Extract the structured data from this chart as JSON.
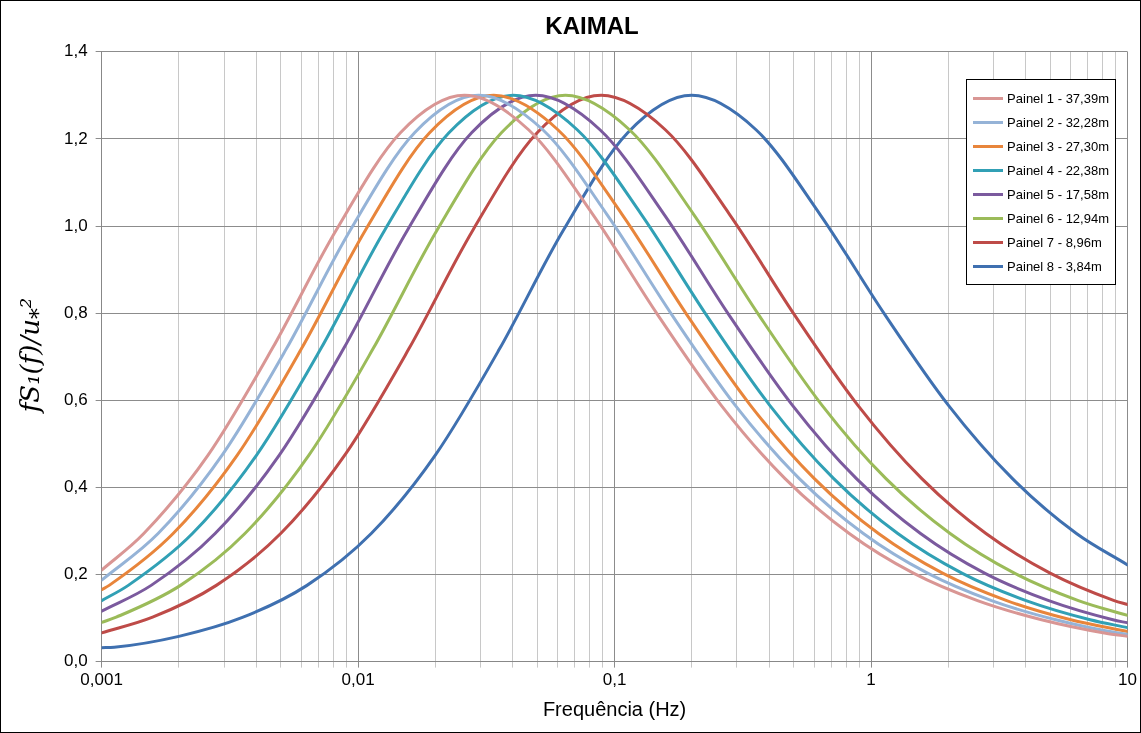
{
  "chart_data": {
    "type": "line",
    "title": "KAIMAL",
    "xlabel": "Frequência (Hz)",
    "ylabel": "fS₁(f)/u$_{*}$²",
    "log": "x",
    "grid": true,
    "legend": "top right",
    "marker": "none",
    "line_style": "solid",
    "xlim": [
      0.001,
      10
    ],
    "xticks": [
      {
        "value": 0.001,
        "label": "0,001"
      },
      {
        "value": 0.002,
        "label": null
      },
      {
        "value": 0.003,
        "label": null
      },
      {
        "value": 0.004,
        "label": null
      },
      {
        "value": 0.005,
        "label": null
      },
      {
        "value": 0.006,
        "label": null
      },
      {
        "value": 0.007,
        "label": null
      },
      {
        "value": 0.008,
        "label": null
      },
      {
        "value": 0.009,
        "label": null
      },
      {
        "value": 0.01,
        "label": "0,01"
      },
      {
        "value": 0.02,
        "label": null
      },
      {
        "value": 0.03,
        "label": null
      },
      {
        "value": 0.04,
        "label": null
      },
      {
        "value": 0.05,
        "label": null
      },
      {
        "value": 0.06,
        "label": null
      },
      {
        "value": 0.07,
        "label": null
      },
      {
        "value": 0.08,
        "label": null
      },
      {
        "value": 0.09,
        "label": null
      },
      {
        "value": 0.1,
        "label": "0,1"
      },
      {
        "value": 0.2,
        "label": null
      },
      {
        "value": 0.3,
        "label": null
      },
      {
        "value": 0.4,
        "label": null
      },
      {
        "value": 0.5,
        "label": null
      },
      {
        "value": 0.6,
        "label": null
      },
      {
        "value": 0.7,
        "label": null
      },
      {
        "value": 0.8,
        "label": null
      },
      {
        "value": 0.9,
        "label": null
      },
      1,
      {
        "value": 2,
        "label": null
      },
      {
        "value": 3,
        "label": null
      },
      {
        "value": 4,
        "label": null
      },
      {
        "value": 5,
        "label": null
      },
      {
        "value": 6,
        "label": null
      },
      {
        "value": 7,
        "label": null
      },
      {
        "value": 8,
        "label": null
      },
      {
        "value": 9,
        "label": null
      },
      10
    ],
    "ylim": [
      0,
      1.4
    ],
    "yticks": [
      {
        "value": 0,
        "label": "0,0"
      },
      {
        "value": 0.2,
        "label": "0,2"
      },
      {
        "value": 0.4,
        "label": "0,4"
      },
      {
        "value": 0.6,
        "label": "0,6"
      },
      {
        "value": 0.8,
        "label": "0,8"
      },
      {
        "value": 1,
        "label": "1,0"
      },
      {
        "value": 1.2,
        "label": "1,2"
      },
      {
        "value": 1.4,
        "label": "1,4"
      }
    ],
    "series": [
      {
        "name": "Painel 1 - 37,39m",
        "color": "#d99694",
        "x": [
          0.001,
          0.00146,
          0.0026,
          0.00462,
          0.00822,
          0.01462,
          0.026,
          0.0462,
          0.0822,
          0.1462,
          0.26,
          0.462,
          0.822,
          1.462,
          2.6,
          4.62,
          8.22,
          10
        ],
        "values": [
          0.21,
          0.294,
          0.474,
          0.718,
          0.991,
          1.214,
          1.3,
          1.221,
          1.027,
          0.799,
          0.589,
          0.42,
          0.294,
          0.203,
          0.14,
          0.096,
          0.065,
          0.058
        ]
      },
      {
        "name": "Painel 2 - 32,28m",
        "color": "#95b3d7",
        "x": [
          0.001,
          0.00166,
          0.00295,
          0.00525,
          0.00933,
          0.0166,
          0.0295,
          0.0525,
          0.0933,
          0.166,
          0.295,
          0.525,
          0.933,
          1.66,
          2.95,
          5.25,
          9.33,
          10
        ],
        "values": [
          0.187,
          0.294,
          0.474,
          0.718,
          0.991,
          1.214,
          1.3,
          1.221,
          1.027,
          0.799,
          0.589,
          0.42,
          0.294,
          0.203,
          0.14,
          0.096,
          0.065,
          0.063
        ]
      },
      {
        "name": "Painel 3 - 27,30m",
        "color": "#e8853b",
        "x": [
          0.001,
          0.00107,
          0.0019,
          0.00338,
          0.00601,
          0.01069,
          0.019,
          0.0338,
          0.0601,
          0.1069,
          0.19,
          0.338,
          0.601,
          1.069,
          1.9,
          3.38,
          6.01,
          10
        ],
        "values": [
          0.165,
          0.175,
          0.294,
          0.474,
          0.718,
          0.991,
          1.214,
          1.3,
          1.221,
          1.027,
          0.799,
          0.589,
          0.42,
          0.294,
          0.203,
          0.14,
          0.096,
          0.069
        ]
      },
      {
        "name": "Painel 4 - 22,38m",
        "color": "#31a0b5",
        "x": [
          0.001,
          0.00127,
          0.00226,
          0.00402,
          0.00715,
          0.01271,
          0.0226,
          0.0402,
          0.0715,
          0.1271,
          0.226,
          0.402,
          0.715,
          1.271,
          2.26,
          4.02,
          7.15,
          10
        ],
        "values": [
          0.14,
          0.175,
          0.294,
          0.474,
          0.718,
          0.991,
          1.214,
          1.3,
          1.221,
          1.027,
          0.799,
          0.589,
          0.42,
          0.294,
          0.203,
          0.14,
          0.096,
          0.078
        ]
      },
      {
        "name": "Painel 5 - 17,58m",
        "color": "#7b5a9e",
        "x": [
          0.001,
          0.00156,
          0.00277,
          0.00493,
          0.00877,
          0.01559,
          0.0277,
          0.0493,
          0.0877,
          0.1559,
          0.277,
          0.493,
          0.877,
          1.559,
          2.77,
          4.93,
          8.77,
          10
        ],
        "values": [
          0.116,
          0.175,
          0.294,
          0.474,
          0.718,
          0.991,
          1.214,
          1.3,
          1.221,
          1.027,
          0.799,
          0.589,
          0.42,
          0.294,
          0.203,
          0.14,
          0.096,
          0.089
        ]
      },
      {
        "name": "Painel 6 - 12,94m",
        "color": "#9bbb59",
        "x": [
          0.001,
          0.00114,
          0.00203,
          0.00362,
          0.00643,
          0.01143,
          0.02033,
          0.0362,
          0.0643,
          0.1143,
          0.2033,
          0.362,
          0.643,
          1.143,
          2.033,
          3.62,
          6.43,
          10
        ],
        "values": [
          0.09,
          0.102,
          0.175,
          0.294,
          0.474,
          0.718,
          0.991,
          1.214,
          1.3,
          1.221,
          1.027,
          0.799,
          0.589,
          0.42,
          0.294,
          0.203,
          0.14,
          0.106
        ]
      },
      {
        "name": "Painel 7 - 8,96m",
        "color": "#be4b48",
        "x": [
          0.001,
          0.00158,
          0.0028,
          0.00499,
          0.00887,
          0.01577,
          0.02805,
          0.0499,
          0.0887,
          0.1577,
          0.2805,
          0.499,
          0.887,
          1.577,
          2.805,
          4.99,
          8.87,
          10
        ],
        "values": [
          0.066,
          0.102,
          0.175,
          0.294,
          0.474,
          0.718,
          0.991,
          1.214,
          1.3,
          1.221,
          1.027,
          0.799,
          0.589,
          0.42,
          0.294,
          0.203,
          0.14,
          0.131
        ]
      },
      {
        "name": "Painel 8 - 3,84m",
        "color": "#3f70b0",
        "x": [
          0.001,
          0.00112,
          0.002,
          0.00356,
          0.00632,
          0.01125,
          0.02,
          0.0356,
          0.0632,
          0.1125,
          0.2,
          0.356,
          0.632,
          1.125,
          2,
          3.56,
          6.32,
          10
        ],
        "values": [
          0.032,
          0.033,
          0.058,
          0.102,
          0.175,
          0.294,
          0.474,
          0.718,
          0.991,
          1.214,
          1.3,
          1.221,
          1.027,
          0.799,
          0.589,
          0.42,
          0.294,
          0.222
        ]
      }
    ]
  }
}
